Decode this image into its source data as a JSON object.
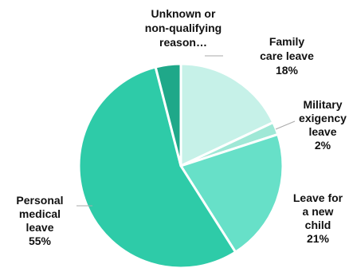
{
  "chart_data": {
    "type": "pie",
    "slices": [
      {
        "label_lines": [
          "Family",
          "care leave"
        ],
        "value": 18,
        "value_label": "18%",
        "color": "#c6f1e8"
      },
      {
        "label_lines": [
          "Military",
          "exigency",
          "leave"
        ],
        "value": 2,
        "value_label": "2%",
        "color": "#9fe8d6"
      },
      {
        "label_lines": [
          "Leave for",
          "a new",
          "child"
        ],
        "value": 21,
        "value_label": "21%",
        "color": "#67e0c8"
      },
      {
        "label_lines": [
          "Personal",
          "medical",
          "leave"
        ],
        "value": 55,
        "value_label": "55%",
        "color": "#2ecba8"
      },
      {
        "label_lines": [
          "Unknown or",
          "non-qualifying",
          "reason…"
        ],
        "value": 4,
        "value_label": "",
        "color": "#1fa889"
      }
    ],
    "start_angle_deg": 0,
    "direction": "clockwise",
    "separator_color": "#ffffff"
  }
}
